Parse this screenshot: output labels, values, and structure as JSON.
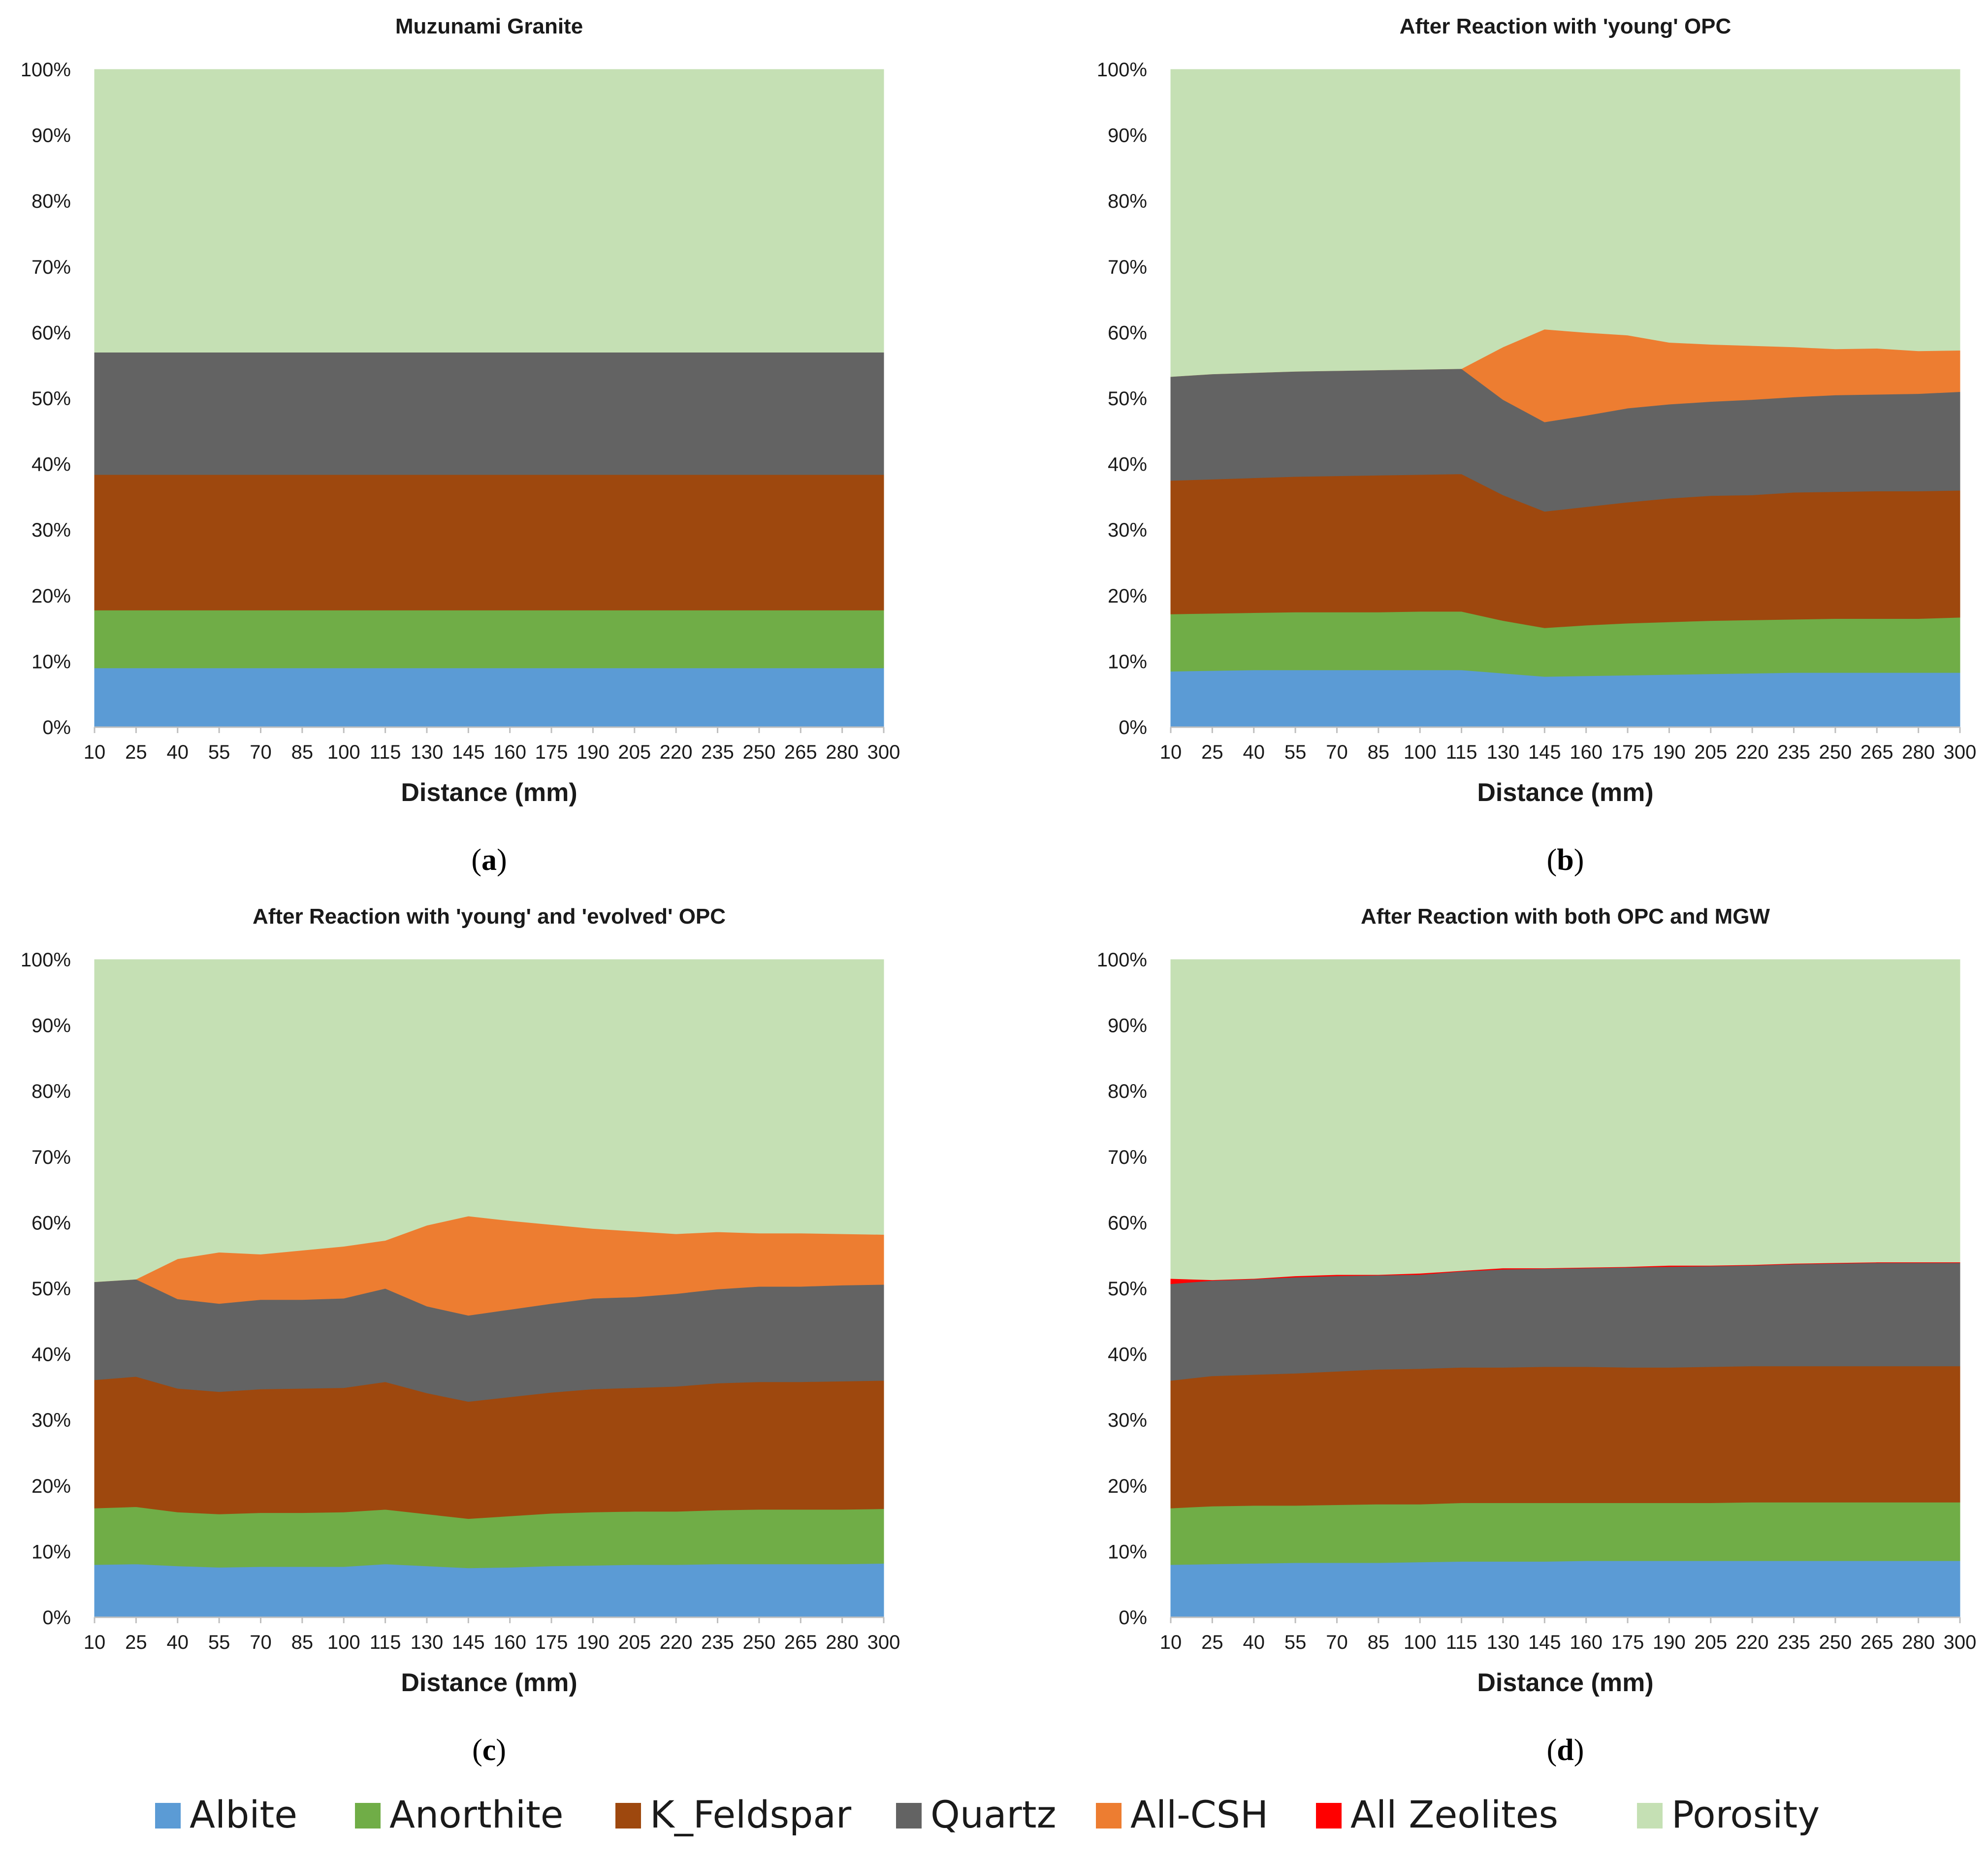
{
  "colors": {
    "Albite": "#5b9bd5",
    "Anorthite": "#70ad47",
    "K_Feldspar": "#9e480e",
    "Quartz": "#636363",
    "All-CSH": "#ed7d31",
    "All Zeolites": "#ff0000",
    "Porosity": "#c5e0b4"
  },
  "legend": {
    "items": [
      "Albite",
      "Anorthite",
      "K_Feldspar",
      "Quartz",
      "All-CSH",
      "All Zeolites",
      "Porosity"
    ]
  },
  "chart_data": [
    {
      "type": "area",
      "stacked": true,
      "panel": "(a)",
      "panel_letter": "a",
      "title": "Muzunami Granite",
      "xlabel": "Distance (mm)",
      "ylabel": "",
      "ylim": [
        0,
        100
      ],
      "yticks": [
        "0%",
        "10%",
        "20%",
        "30%",
        "40%",
        "50%",
        "60%",
        "70%",
        "80%",
        "90%",
        "100%"
      ],
      "x": [
        10,
        25,
        40,
        55,
        70,
        85,
        100,
        115,
        130,
        145,
        160,
        175,
        190,
        205,
        220,
        235,
        250,
        265,
        280,
        300
      ],
      "series": [
        {
          "name": "Albite",
          "values": [
            9,
            9,
            9,
            9,
            9,
            9,
            9,
            9,
            9,
            9,
            9,
            9,
            9,
            9,
            9,
            9,
            9,
            9,
            9,
            9
          ]
        },
        {
          "name": "Anorthite",
          "values": [
            8.8,
            8.8,
            8.8,
            8.8,
            8.8,
            8.8,
            8.8,
            8.8,
            8.8,
            8.8,
            8.8,
            8.8,
            8.8,
            8.8,
            8.8,
            8.8,
            8.8,
            8.8,
            8.8,
            8.8
          ]
        },
        {
          "name": "K_Feldspar",
          "values": [
            20.6,
            20.6,
            20.6,
            20.6,
            20.6,
            20.6,
            20.6,
            20.6,
            20.6,
            20.6,
            20.6,
            20.6,
            20.6,
            20.6,
            20.6,
            20.6,
            20.6,
            20.6,
            20.6,
            20.6
          ]
        },
        {
          "name": "Quartz",
          "values": [
            18.6,
            18.6,
            18.6,
            18.6,
            18.6,
            18.6,
            18.6,
            18.6,
            18.6,
            18.6,
            18.6,
            18.6,
            18.6,
            18.6,
            18.6,
            18.6,
            18.6,
            18.6,
            18.6,
            18.6
          ]
        },
        {
          "name": "All-CSH",
          "values": [
            0,
            0,
            0,
            0,
            0,
            0,
            0,
            0,
            0,
            0,
            0,
            0,
            0,
            0,
            0,
            0,
            0,
            0,
            0,
            0
          ]
        },
        {
          "name": "All Zeolites",
          "values": [
            0,
            0,
            0,
            0,
            0,
            0,
            0,
            0,
            0,
            0,
            0,
            0,
            0,
            0,
            0,
            0,
            0,
            0,
            0,
            0
          ]
        },
        {
          "name": "Porosity",
          "values": [
            43,
            43,
            43,
            43,
            43,
            43,
            43,
            43,
            43,
            43,
            43,
            43,
            43,
            43,
            43,
            43,
            43,
            43,
            43,
            43
          ]
        }
      ]
    },
    {
      "type": "area",
      "stacked": true,
      "panel": "(b)",
      "panel_letter": "b",
      "title": "After Reaction with 'young' OPC",
      "xlabel": "Distance (mm)",
      "ylabel": "",
      "ylim": [
        0,
        100
      ],
      "yticks": [
        "0%",
        "10%",
        "20%",
        "30%",
        "40%",
        "50%",
        "60%",
        "70%",
        "80%",
        "90%",
        "100%"
      ],
      "x": [
        10,
        25,
        40,
        55,
        70,
        85,
        100,
        115,
        130,
        145,
        160,
        175,
        190,
        205,
        220,
        235,
        250,
        265,
        280,
        300
      ],
      "series": [
        {
          "name": "Albite",
          "values": [
            8.5,
            8.6,
            8.7,
            8.7,
            8.7,
            8.7,
            8.7,
            8.7,
            8.2,
            7.7,
            7.8,
            7.9,
            8.0,
            8.1,
            8.2,
            8.3,
            8.3,
            8.3,
            8.3,
            8.3
          ]
        },
        {
          "name": "Anorthite",
          "values": [
            8.7,
            8.7,
            8.7,
            8.8,
            8.8,
            8.8,
            8.9,
            8.9,
            8.0,
            7.4,
            7.7,
            7.9,
            8.0,
            8.1,
            8.1,
            8.1,
            8.2,
            8.2,
            8.2,
            8.4
          ]
        },
        {
          "name": "K_Feldspar",
          "values": [
            20.3,
            20.4,
            20.5,
            20.6,
            20.7,
            20.8,
            20.8,
            20.9,
            19.1,
            17.7,
            18.0,
            18.4,
            18.8,
            19.0,
            19.0,
            19.3,
            19.3,
            19.4,
            19.4,
            19.3
          ]
        },
        {
          "name": "Quartz",
          "values": [
            15.8,
            16.0,
            16.0,
            16.0,
            16.0,
            16.0,
            16.0,
            16.0,
            14.5,
            13.6,
            13.9,
            14.3,
            14.3,
            14.3,
            14.5,
            14.5,
            14.7,
            14.7,
            14.8,
            15.0
          ]
        },
        {
          "name": "All-CSH",
          "values": [
            0,
            0,
            0,
            0,
            0,
            0,
            0,
            0,
            8.0,
            14.1,
            12.6,
            11.1,
            9.4,
            8.7,
            8.2,
            7.6,
            7.0,
            7.0,
            6.5,
            6.3
          ]
        },
        {
          "name": "All Zeolites",
          "values": [
            0,
            0,
            0,
            0,
            0,
            0,
            0,
            0,
            0,
            0,
            0,
            0,
            0,
            0,
            0,
            0,
            0,
            0,
            0,
            0
          ]
        },
        {
          "name": "Porosity",
          "values": [
            46.7,
            46.3,
            46.1,
            45.9,
            45.8,
            45.7,
            45.6,
            45.5,
            42.2,
            39.5,
            40.0,
            40.4,
            41.5,
            41.8,
            42.0,
            42.2,
            42.5,
            42.4,
            42.8,
            42.7
          ]
        }
      ]
    },
    {
      "type": "area",
      "stacked": true,
      "panel": "(c)",
      "panel_letter": "c",
      "title": "After Reaction with 'young' and 'evolved' OPC",
      "xlabel": "Distance (mm)",
      "ylabel": "",
      "ylim": [
        0,
        100
      ],
      "yticks": [
        "0%",
        "10%",
        "20%",
        "30%",
        "40%",
        "50%",
        "60%",
        "70%",
        "80%",
        "90%",
        "100%"
      ],
      "x": [
        10,
        25,
        40,
        55,
        70,
        85,
        100,
        115,
        130,
        145,
        160,
        175,
        190,
        205,
        220,
        235,
        250,
        265,
        280,
        300
      ],
      "series": [
        {
          "name": "Albite",
          "values": [
            8.0,
            8.1,
            7.8,
            7.6,
            7.7,
            7.7,
            7.7,
            8.1,
            7.8,
            7.5,
            7.6,
            7.8,
            7.9,
            8.0,
            8.0,
            8.1,
            8.1,
            8.1,
            8.1,
            8.2
          ]
        },
        {
          "name": "Anorthite",
          "values": [
            8.6,
            8.7,
            8.2,
            8.1,
            8.2,
            8.2,
            8.3,
            8.3,
            7.9,
            7.5,
            7.8,
            8.0,
            8.1,
            8.1,
            8.1,
            8.2,
            8.3,
            8.3,
            8.3,
            8.3
          ]
        },
        {
          "name": "K_Feldspar",
          "values": [
            19.5,
            19.8,
            18.8,
            18.6,
            18.8,
            18.9,
            18.9,
            19.4,
            18.4,
            17.8,
            18.1,
            18.4,
            18.7,
            18.8,
            19.0,
            19.3,
            19.4,
            19.4,
            19.5,
            19.5
          ]
        },
        {
          "name": "Quartz",
          "values": [
            14.9,
            14.8,
            13.6,
            13.4,
            13.6,
            13.5,
            13.6,
            14.2,
            13.2,
            13.1,
            13.3,
            13.5,
            13.8,
            13.8,
            14.1,
            14.3,
            14.5,
            14.5,
            14.6,
            14.6
          ]
        },
        {
          "name": "All-CSH",
          "values": [
            0,
            0,
            6.1,
            7.8,
            6.9,
            7.5,
            7.9,
            7.3,
            12.3,
            15.1,
            13.5,
            12.0,
            10.6,
            10.0,
            9.1,
            8.7,
            8.1,
            8.1,
            7.8,
            7.6
          ]
        },
        {
          "name": "All Zeolites",
          "values": [
            0,
            0,
            0,
            0,
            0,
            0,
            0,
            0,
            0,
            0,
            0,
            0,
            0,
            0,
            0,
            0,
            0,
            0,
            0,
            0
          ]
        },
        {
          "name": "Porosity",
          "values": [
            49.0,
            48.6,
            45.5,
            44.5,
            44.8,
            44.2,
            43.6,
            42.7,
            40.4,
            39.0,
            39.7,
            40.3,
            40.9,
            41.3,
            41.7,
            41.4,
            41.6,
            41.6,
            41.7,
            41.8
          ]
        }
      ]
    },
    {
      "type": "area",
      "stacked": true,
      "panel": "(d)",
      "panel_letter": "d",
      "title": "After Reaction with both OPC and MGW",
      "xlabel": "Distance (mm)",
      "ylabel": "",
      "ylim": [
        0,
        100
      ],
      "yticks": [
        "0%",
        "10%",
        "20%",
        "30%",
        "40%",
        "50%",
        "60%",
        "70%",
        "80%",
        "90%",
        "100%"
      ],
      "x": [
        10,
        25,
        40,
        55,
        70,
        85,
        100,
        115,
        130,
        145,
        160,
        175,
        190,
        205,
        220,
        235,
        250,
        265,
        280,
        300
      ],
      "series": [
        {
          "name": "Albite",
          "values": [
            8.0,
            8.1,
            8.2,
            8.3,
            8.3,
            8.3,
            8.4,
            8.5,
            8.5,
            8.5,
            8.6,
            8.6,
            8.6,
            8.6,
            8.6,
            8.6,
            8.6,
            8.6,
            8.6,
            8.6
          ]
        },
        {
          "name": "Anorthite",
          "values": [
            8.6,
            8.8,
            8.8,
            8.7,
            8.8,
            8.9,
            8.8,
            8.9,
            8.9,
            8.9,
            8.8,
            8.8,
            8.8,
            8.8,
            8.9,
            8.9,
            8.9,
            8.9,
            8.9,
            8.9
          ]
        },
        {
          "name": "K_Feldspar",
          "values": [
            19.4,
            19.8,
            19.9,
            20.1,
            20.3,
            20.5,
            20.6,
            20.6,
            20.6,
            20.7,
            20.7,
            20.6,
            20.6,
            20.7,
            20.7,
            20.7,
            20.7,
            20.7,
            20.7,
            20.7
          ]
        },
        {
          "name": "Quartz",
          "values": [
            14.7,
            14.5,
            14.5,
            14.6,
            14.5,
            14.3,
            14.3,
            14.6,
            14.9,
            14.9,
            15.0,
            15.2,
            15.3,
            15.3,
            15.3,
            15.5,
            15.6,
            15.7,
            15.7,
            15.7
          ]
        },
        {
          "name": "All-CSH",
          "values": [
            0,
            0,
            0,
            0,
            0,
            0,
            0,
            0,
            0,
            0,
            0,
            0,
            0,
            0,
            0,
            0,
            0,
            0,
            0,
            0
          ]
        },
        {
          "name": "All Zeolites",
          "values": [
            0.8,
            0.1,
            0.1,
            0.2,
            0.2,
            0.1,
            0.2,
            0.1,
            0.2,
            0.1,
            0.1,
            0.1,
            0.2,
            0.1,
            0.1,
            0.1,
            0.1,
            0.1,
            0.1,
            0.1
          ]
        },
        {
          "name": "Porosity",
          "values": [
            48.5,
            48.7,
            48.5,
            48.1,
            47.9,
            47.9,
            47.7,
            47.3,
            46.9,
            46.9,
            46.8,
            46.7,
            46.5,
            46.5,
            46.4,
            46.2,
            46.1,
            46.0,
            46.0,
            46.0
          ]
        }
      ]
    }
  ]
}
